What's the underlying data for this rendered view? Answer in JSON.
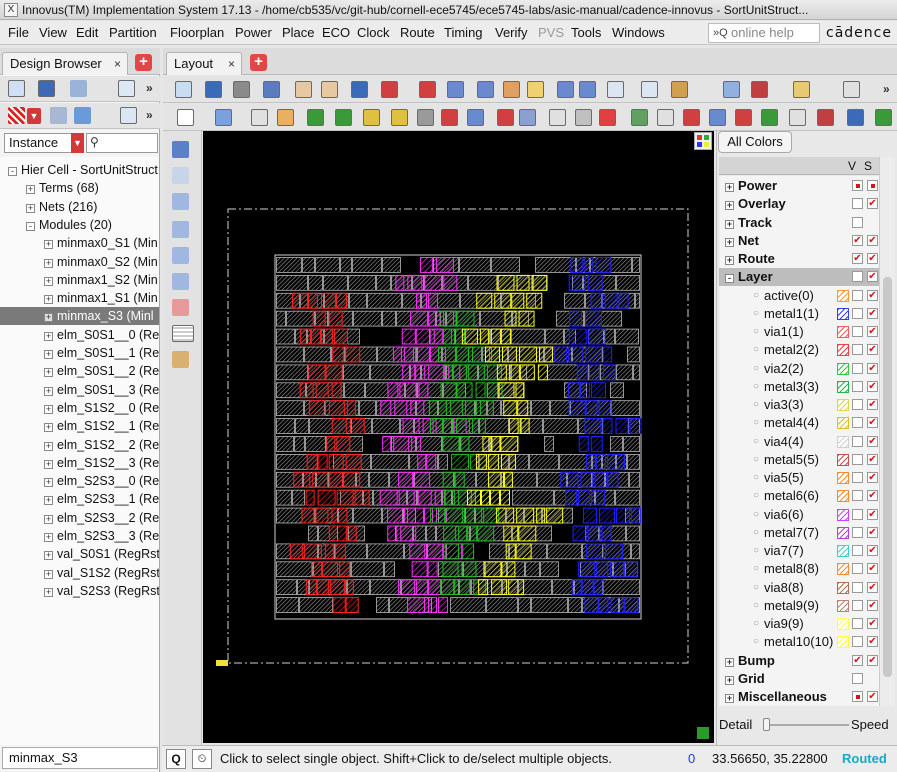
{
  "window": {
    "title": "Innovus(TM) Implementation System 17.13 - /home/cb535/vc/git-hub/cornell-ece5745/ece5745-labs/asic-manual/cadence-innovus - SortUnitStruct..."
  },
  "menubar": {
    "items": [
      "File",
      "View",
      "Edit",
      "Partition",
      "Floorplan",
      "Power",
      "Place",
      "ECO",
      "Clock",
      "Route",
      "Timing",
      "Verify",
      "PVS",
      "Tools",
      "Windows"
    ],
    "help_placeholder": "online help",
    "brand": "cādence"
  },
  "left_tab": {
    "label": "Design Browser",
    "close": "×"
  },
  "layout_tab": {
    "label": "Layout",
    "close": "×"
  },
  "browser": {
    "filter_value": "Instance",
    "tree": [
      {
        "label": "Hier Cell - SortUnitStruct",
        "exp": "-"
      },
      {
        "label": "Terms (68)",
        "exp": "+"
      },
      {
        "label": "Nets (216)",
        "exp": "+"
      },
      {
        "label": "Modules (20)",
        "exp": "-"
      },
      {
        "label": "minmax0_S1 (Min",
        "exp": "+"
      },
      {
        "label": "minmax0_S2 (Min",
        "exp": "+"
      },
      {
        "label": "minmax1_S2 (Min",
        "exp": "+"
      },
      {
        "label": "minmax1_S1 (Min",
        "exp": "+"
      },
      {
        "label": "minmax_S3 (Minl",
        "exp": "+",
        "selected": true
      },
      {
        "label": "elm_S0S1__0 (Reg",
        "exp": "+"
      },
      {
        "label": "elm_S0S1__1 (Reg",
        "exp": "+"
      },
      {
        "label": "elm_S0S1__2 (Reg",
        "exp": "+"
      },
      {
        "label": "elm_S0S1__3 (Reg",
        "exp": "+"
      },
      {
        "label": "elm_S1S2__0 (Reg",
        "exp": "+"
      },
      {
        "label": "elm_S1S2__1 (Reg",
        "exp": "+"
      },
      {
        "label": "elm_S1S2__2 (Reg",
        "exp": "+"
      },
      {
        "label": "elm_S1S2__3 (Reg",
        "exp": "+"
      },
      {
        "label": "elm_S2S3__0 (Reg",
        "exp": "+"
      },
      {
        "label": "elm_S2S3__1 (Reg",
        "exp": "+"
      },
      {
        "label": "elm_S2S3__2 (Reg",
        "exp": "+"
      },
      {
        "label": "elm_S2S3__3 (Reg",
        "exp": "+"
      },
      {
        "label": "val_S0S1 (RegRst_",
        "exp": "+"
      },
      {
        "label": "val_S1S2 (RegRst_",
        "exp": "+"
      },
      {
        "label": "val_S2S3 (RegRst_",
        "exp": "+"
      }
    ],
    "status_value": "minmax_S3"
  },
  "colors_panel": {
    "button_label": "All Colors",
    "col_v": "V",
    "col_s": "S",
    "groups": [
      {
        "label": "Power",
        "exp": "+",
        "v": "dot",
        "s": "dot"
      },
      {
        "label": "Overlay",
        "exp": "+",
        "v": "off",
        "s": "chk"
      },
      {
        "label": "Track",
        "exp": "+",
        "v": "off",
        "s": "none"
      },
      {
        "label": "Net",
        "exp": "+",
        "v": "chk",
        "s": "chk"
      },
      {
        "label": "Route",
        "exp": "+",
        "v": "chk",
        "s": "chk"
      },
      {
        "label": "Layer",
        "exp": "-",
        "v": "off",
        "s": "chk",
        "selected": true
      }
    ],
    "layers": [
      {
        "label": "active(0)",
        "color": "#ff9a2e"
      },
      {
        "label": "metal1(1)",
        "color": "#2f3dff"
      },
      {
        "label": "via1(1)",
        "color": "#ff5a5a"
      },
      {
        "label": "metal2(2)",
        "color": "#ff3b3b"
      },
      {
        "label": "via2(2)",
        "color": "#2ecc40"
      },
      {
        "label": "metal3(3)",
        "color": "#23b34a"
      },
      {
        "label": "via3(3)",
        "color": "#d8d84a"
      },
      {
        "label": "metal4(4)",
        "color": "#e0c020"
      },
      {
        "label": "via4(4)",
        "color": "#d0d0d0"
      },
      {
        "label": "metal5(5)",
        "color": "#c85050"
      },
      {
        "label": "via5(5)",
        "color": "#ff8a30"
      },
      {
        "label": "metal6(6)",
        "color": "#ff8a30"
      },
      {
        "label": "via6(6)",
        "color": "#d040ff"
      },
      {
        "label": "metal7(7)",
        "color": "#b040e0"
      },
      {
        "label": "via7(7)",
        "color": "#40d0d0"
      },
      {
        "label": "metal8(8)",
        "color": "#ff8a30"
      },
      {
        "label": "via8(8)",
        "color": "#b07050"
      },
      {
        "label": "metal9(9)",
        "color": "#c08070"
      },
      {
        "label": "via9(9)",
        "color": "#ffff60"
      },
      {
        "label": "metal10(10)",
        "color": "#ffff40"
      }
    ],
    "bottom_groups": [
      {
        "label": "Bump",
        "exp": "+",
        "v": "chk",
        "s": "chk"
      },
      {
        "label": "Grid",
        "exp": "+",
        "v": "off",
        "s": "none"
      },
      {
        "label": "Miscellaneous",
        "exp": "+",
        "v": "dot",
        "s": "chk"
      }
    ],
    "detail_label": "Detail",
    "speed_label": "Speed"
  },
  "statusbar": {
    "q_label": "Q",
    "message": "Click to select single object. Shift+Click to de/select multiple objects.",
    "count": "0",
    "coords": "33.56650, 35.22800",
    "state": "Routed"
  },
  "theme": {
    "canvas_bg": "#000000",
    "cell_gray": "#b8b8b8",
    "route_red": "#ff2020",
    "route_magenta": "#ff30ff",
    "route_green": "#20c020",
    "route_yellow": "#ffff20",
    "route_blue": "#2020ff",
    "status_state_color": "#1aa8c8",
    "accent_red": "#d23a3a"
  }
}
